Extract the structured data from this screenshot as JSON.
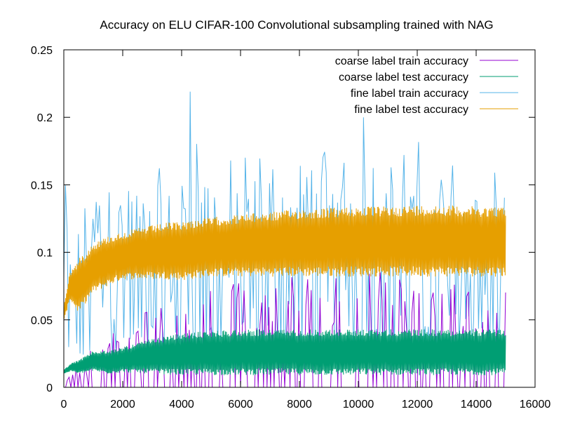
{
  "chart_data": {
    "type": "line",
    "title": "Accuracy on ELU CIFAR-100 Convolutional subsampling trained with NAG",
    "xlabel": "",
    "ylabel": "",
    "xlim": [
      0,
      16000
    ],
    "ylim": [
      0,
      0.25
    ],
    "x_ticks": [
      0,
      2000,
      4000,
      6000,
      8000,
      10000,
      12000,
      14000,
      16000
    ],
    "y_ticks": [
      0,
      0.05,
      0.1,
      0.15,
      0.2,
      0.25
    ],
    "x_tick_labels": [
      "0",
      "2000",
      "4000",
      "6000",
      "8000",
      "10000",
      "12000",
      "14000",
      "16000"
    ],
    "y_tick_labels": [
      "0",
      "0.05",
      "0.1",
      "0.15",
      "0.2",
      "0.25"
    ],
    "grid": false,
    "legend_position": "top-right",
    "x_range_of_data": [
      0,
      15000
    ],
    "series": [
      {
        "name": "coarse label train accuracy",
        "color": "#9400d3",
        "style": "sparse noisy, mostly 0 with spikes to ~0.03-0.09",
        "x": [
          0,
          1000,
          2000,
          3000,
          4000,
          5000,
          6000,
          7000,
          8000,
          9000,
          10000,
          11000,
          12000,
          13000,
          14000,
          15000
        ],
        "low": [
          0,
          0,
          0,
          0,
          0,
          0,
          0,
          0,
          0,
          0,
          0,
          0,
          0,
          0,
          0,
          0
        ],
        "high": [
          0.01,
          0.03,
          0.045,
          0.06,
          0.06,
          0.08,
          0.08,
          0.085,
          0.085,
          0.09,
          0.09,
          0.085,
          0.08,
          0.08,
          0.08,
          0.085
        ]
      },
      {
        "name": "coarse label test accuracy",
        "color": "#009e73",
        "style": "dense band",
        "x": [
          0,
          250,
          500,
          1000,
          1500,
          2000,
          3000,
          4000,
          5000,
          6000,
          8000,
          10000,
          12000,
          14000,
          15000
        ],
        "low": [
          0.01,
          0.012,
          0.01,
          0.012,
          0.01,
          0.011,
          0.01,
          0.009,
          0.009,
          0.009,
          0.009,
          0.009,
          0.009,
          0.009,
          0.009
        ],
        "high": [
          0.013,
          0.018,
          0.02,
          0.027,
          0.027,
          0.03,
          0.036,
          0.04,
          0.042,
          0.043,
          0.043,
          0.043,
          0.043,
          0.043,
          0.043
        ]
      },
      {
        "name": "fine label train accuracy",
        "color": "#56b4e9",
        "style": "noisy spiky line",
        "x": [
          0,
          1000,
          2000,
          3000,
          4000,
          4300,
          5000,
          6000,
          7000,
          8000,
          9000,
          10000,
          10200,
          11000,
          12000,
          13000,
          14000,
          15000
        ],
        "low": [
          0.0,
          0.02,
          0.02,
          0.02,
          0.02,
          0.02,
          0.02,
          0.02,
          0.02,
          0.02,
          0.02,
          0.02,
          0.02,
          0.02,
          0.02,
          0.02,
          0.02,
          0.02
        ],
        "high": [
          0.08,
          0.165,
          0.17,
          0.16,
          0.17,
          0.219,
          0.18,
          0.17,
          0.175,
          0.18,
          0.19,
          0.18,
          0.2,
          0.18,
          0.185,
          0.18,
          0.175,
          0.17
        ]
      },
      {
        "name": "fine label test accuracy",
        "color": "#e69f00",
        "style": "dense band",
        "x": [
          0,
          200,
          500,
          1000,
          1500,
          2000,
          2500,
          3000,
          3500,
          4000,
          5000,
          6000,
          7000,
          8000,
          9000,
          10000,
          11000,
          12000,
          13000,
          14000,
          15000
        ],
        "low": [
          0.048,
          0.065,
          0.055,
          0.07,
          0.075,
          0.08,
          0.08,
          0.08,
          0.08,
          0.079,
          0.082,
          0.082,
          0.082,
          0.082,
          0.082,
          0.082,
          0.082,
          0.082,
          0.082,
          0.082,
          0.082
        ],
        "high": [
          0.06,
          0.085,
          0.095,
          0.107,
          0.112,
          0.115,
          0.118,
          0.12,
          0.122,
          0.123,
          0.126,
          0.128,
          0.13,
          0.132,
          0.133,
          0.134,
          0.134,
          0.135,
          0.135,
          0.134,
          0.134
        ]
      }
    ]
  }
}
